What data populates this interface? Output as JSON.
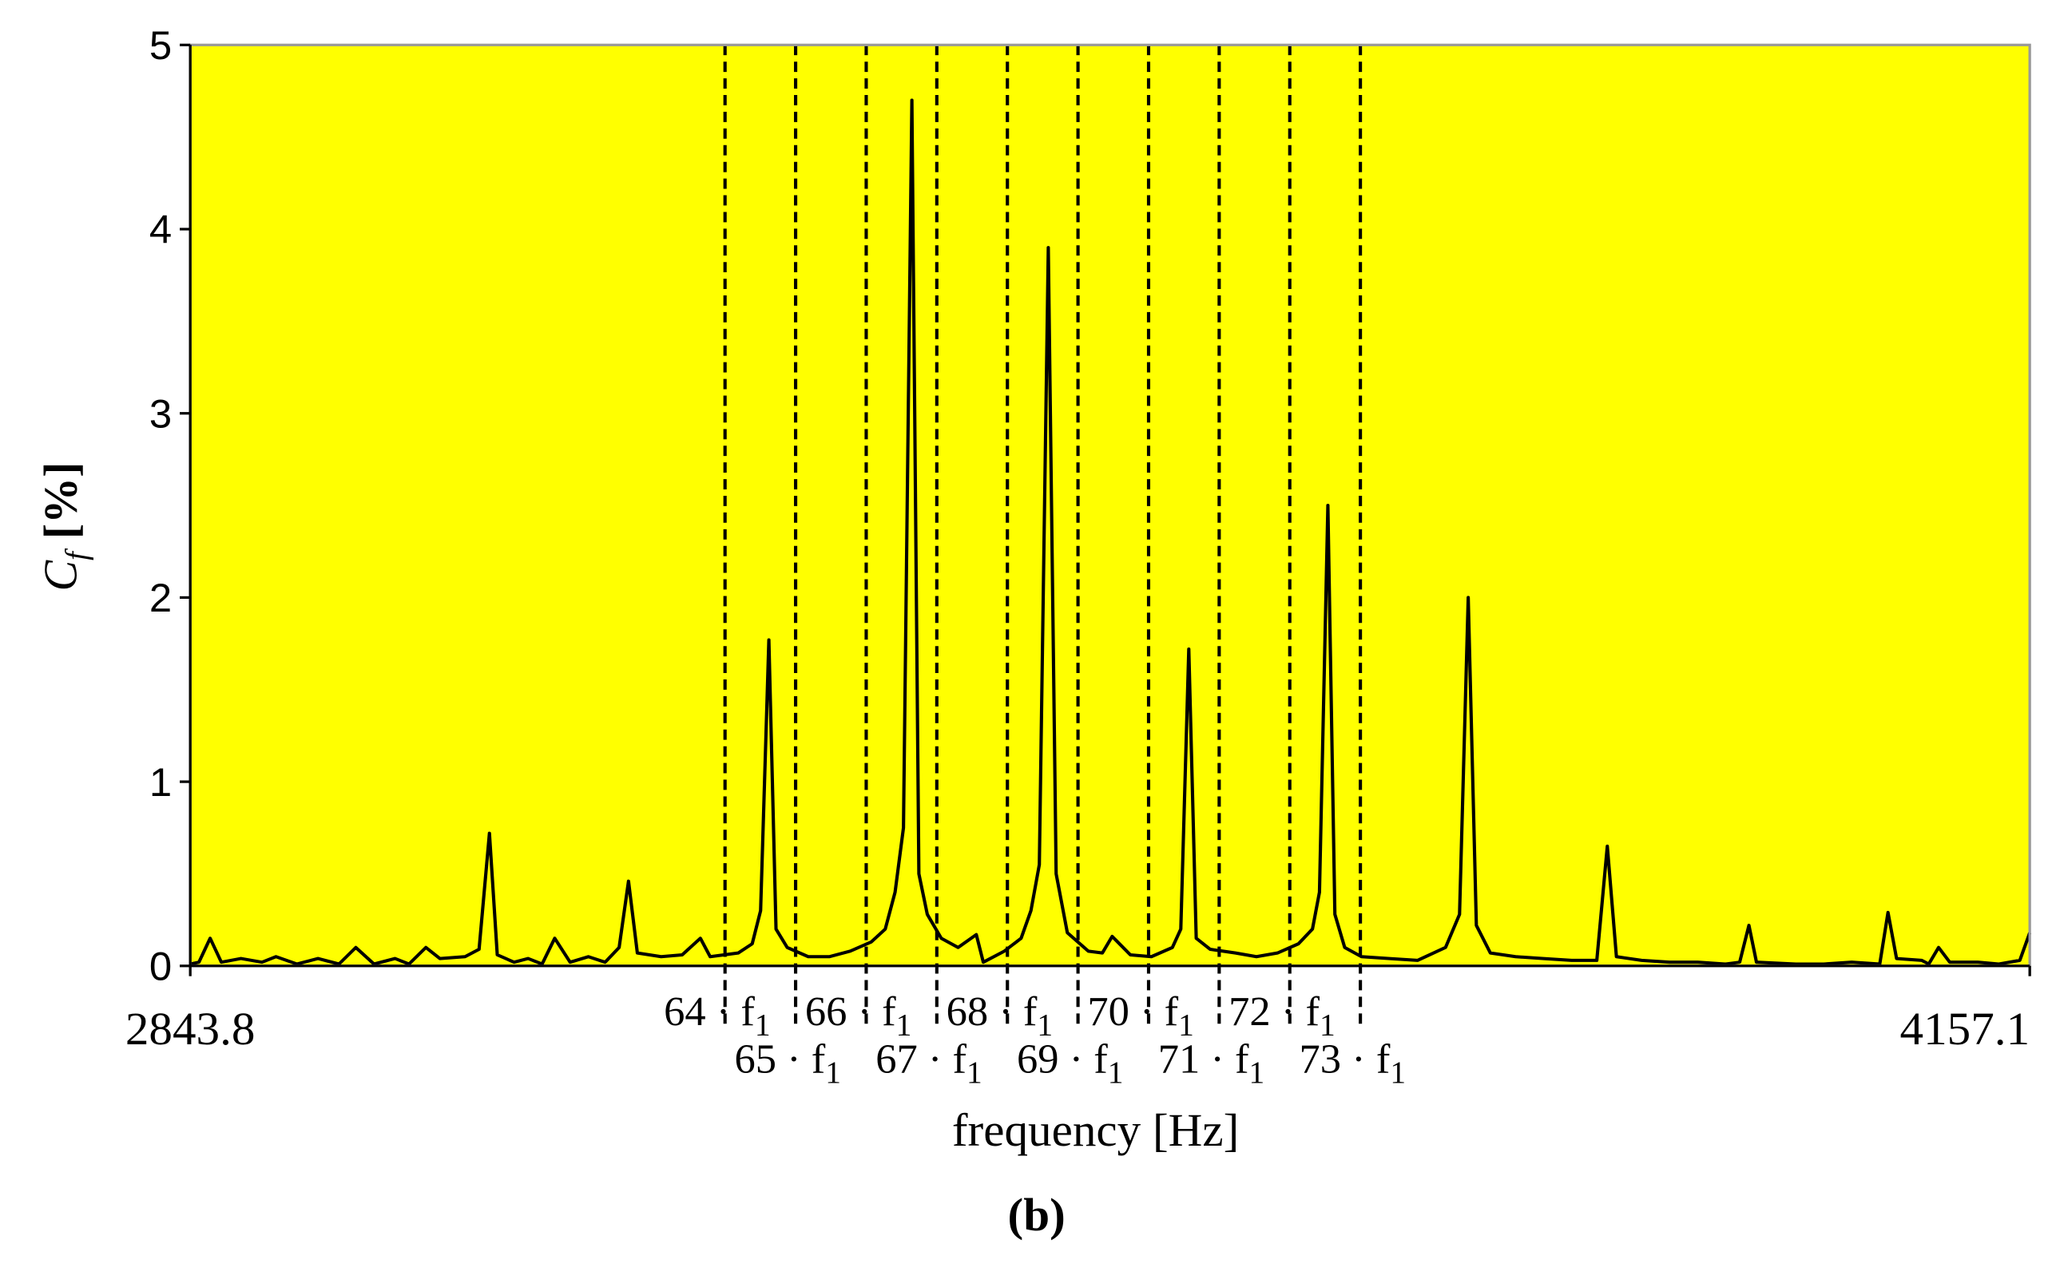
{
  "chart_data": {
    "type": "line",
    "title": "(b)",
    "xlabel": "frequency [Hz]",
    "ylabel": {
      "main": "C",
      "sub": "f",
      "unit": "[%]"
    },
    "background": "#ffff00",
    "color": "#000000",
    "xlim": [
      2843.8,
      4157.1
    ],
    "xticks": [
      2843.8,
      4157.1
    ],
    "ylim": [
      0,
      5
    ],
    "yticks": [
      0,
      1,
      2,
      3,
      4,
      5
    ],
    "x": [
      2843.8,
      2850,
      2858,
      2866,
      2880,
      2895,
      2905,
      2920,
      2935,
      2950,
      2962,
      2975,
      2990,
      3000,
      3012,
      3022,
      3040,
      3050,
      3057.4,
      3063,
      3075,
      3085,
      3095,
      3104,
      3115,
      3128,
      3140,
      3150,
      3156.7,
      3163,
      3180,
      3195,
      3208,
      3215,
      3235,
      3245,
      3251,
      3256.9,
      3262,
      3270,
      3285,
      3300,
      3315,
      3330,
      3340,
      3347,
      3353,
      3359,
      3364,
      3370,
      3380,
      3392,
      3405,
      3410,
      3425,
      3437,
      3444,
      3450,
      3456.4,
      3462,
      3470,
      3485,
      3495,
      3502,
      3515,
      3530,
      3545,
      3551,
      3556.7,
      3562,
      3572,
      3590,
      3605,
      3620,
      3635,
      3645,
      3650,
      3656,
      3661,
      3668,
      3680,
      3700,
      3720,
      3740,
      3750,
      3756.2,
      3762,
      3772,
      3790,
      3810,
      3830,
      3848,
      3855.5,
      3862,
      3880,
      3900,
      3920,
      3940,
      3950,
      3956.6,
      3962,
      3990,
      4010,
      4030,
      4050,
      4055.9,
      4062,
      4080,
      4085,
      4092,
      4100,
      4120,
      4135,
      4150,
      4157.1
    ],
    "values": [
      0.01,
      0.02,
      0.15,
      0.02,
      0.04,
      0.02,
      0.05,
      0.01,
      0.04,
      0.01,
      0.1,
      0.01,
      0.04,
      0.01,
      0.1,
      0.04,
      0.05,
      0.09,
      0.72,
      0.06,
      0.02,
      0.04,
      0.01,
      0.15,
      0.02,
      0.05,
      0.02,
      0.1,
      0.46,
      0.07,
      0.05,
      0.06,
      0.15,
      0.05,
      0.07,
      0.12,
      0.3,
      1.77,
      0.2,
      0.1,
      0.05,
      0.05,
      0.08,
      0.13,
      0.2,
      0.4,
      0.75,
      4.7,
      0.5,
      0.28,
      0.15,
      0.1,
      0.17,
      0.02,
      0.08,
      0.15,
      0.3,
      0.55,
      3.9,
      0.5,
      0.18,
      0.08,
      0.07,
      0.16,
      0.06,
      0.05,
      0.1,
      0.2,
      1.72,
      0.15,
      0.09,
      0.07,
      0.05,
      0.07,
      0.12,
      0.2,
      0.4,
      2.5,
      0.28,
      0.1,
      0.05,
      0.04,
      0.03,
      0.1,
      0.28,
      2.0,
      0.22,
      0.07,
      0.05,
      0.04,
      0.03,
      0.03,
      0.65,
      0.05,
      0.03,
      0.02,
      0.02,
      0.01,
      0.02,
      0.22,
      0.02,
      0.01,
      0.01,
      0.02,
      0.01,
      0.29,
      0.04,
      0.03,
      0.01,
      0.1,
      0.02,
      0.02,
      0.01,
      0.03,
      0.18
    ],
    "annotations": [
      {
        "x": 3225.6,
        "label": "64 · f",
        "sub": "1"
      },
      {
        "x": 3276.0,
        "label": "65 · f",
        "sub": "1"
      },
      {
        "x": 3326.4,
        "label": "66 · f",
        "sub": "1"
      },
      {
        "x": 3376.8,
        "label": "67 · f",
        "sub": "1"
      },
      {
        "x": 3427.2,
        "label": "68 · f",
        "sub": "1"
      },
      {
        "x": 3477.6,
        "label": "69 · f",
        "sub": "1"
      },
      {
        "x": 3528.0,
        "label": "70 · f",
        "sub": "1"
      },
      {
        "x": 3578.4,
        "label": "71 · f",
        "sub": "1"
      },
      {
        "x": 3628.8,
        "label": "72 · f",
        "sub": "1"
      },
      {
        "x": 3679.2,
        "label": "73 · f",
        "sub": "1"
      }
    ]
  }
}
